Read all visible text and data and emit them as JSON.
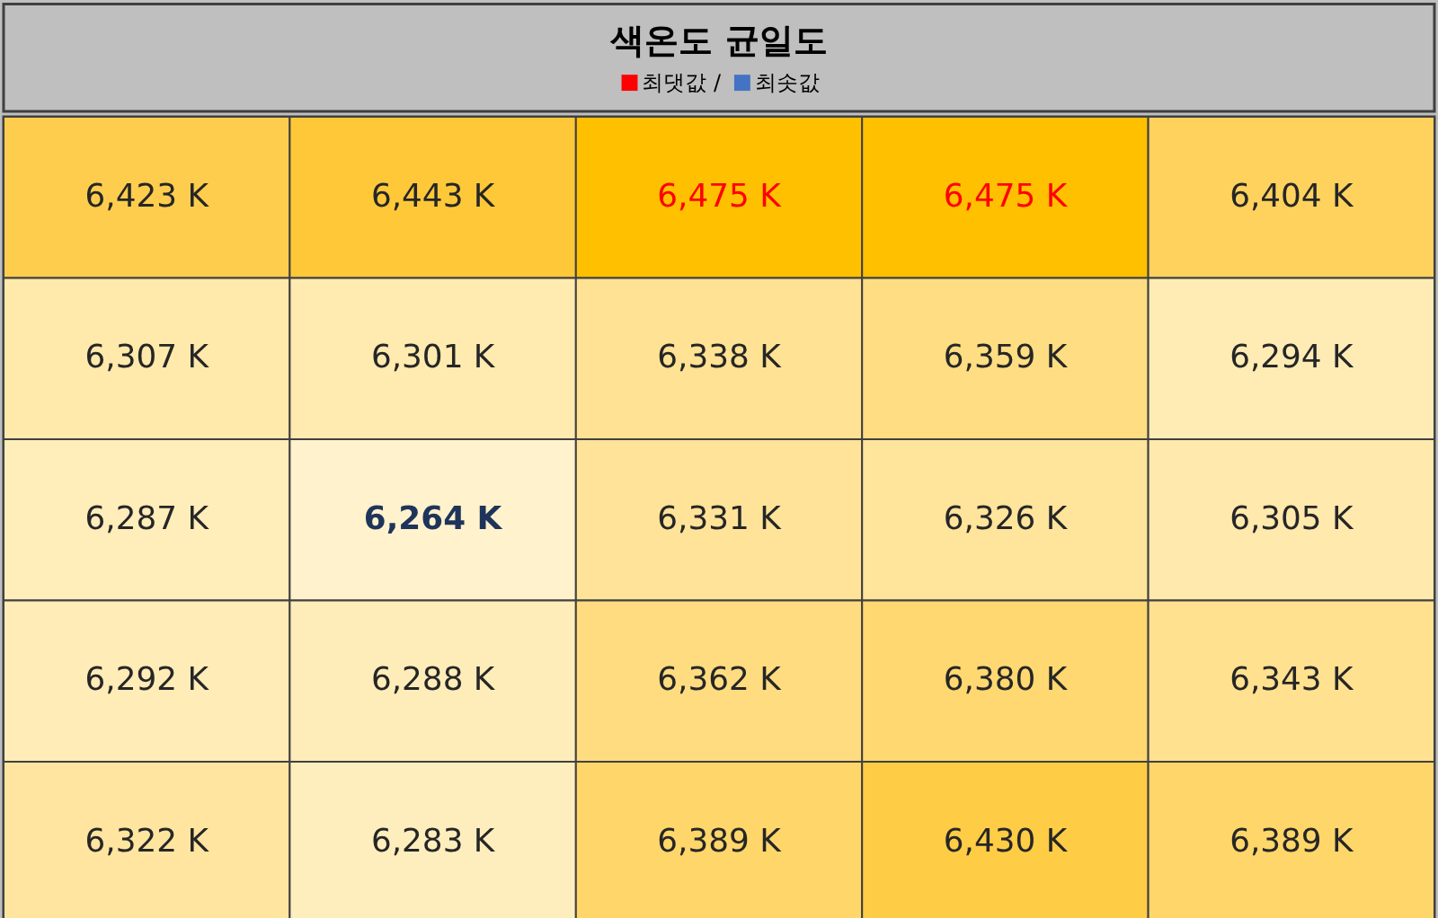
{
  "chart_data": {
    "type": "heatmap",
    "title": "색온도 균일도",
    "categories": [
      null,
      null,
      null,
      null,
      null
    ],
    "y_categories": [
      null,
      null,
      null,
      null,
      null
    ],
    "cells": [
      [
        6423,
        6443,
        6475,
        6475,
        6404
      ],
      [
        6307,
        6301,
        6338,
        6359,
        6294
      ],
      [
        6287,
        6264,
        6331,
        6326,
        6305
      ],
      [
        6292,
        6288,
        6362,
        6380,
        6343
      ],
      [
        6322,
        6283,
        6389,
        6430,
        6389
      ]
    ],
    "cell_labels": [
      [
        "6,423 K",
        "6,443 K",
        "6,475 K",
        "6,475 K",
        "6,404 K"
      ],
      [
        "6,307 K",
        "6,301 K",
        "6,338 K",
        "6,359 K",
        "6,294 K"
      ],
      [
        "6,287 K",
        "6,264 K",
        "6,331 K",
        "6,326 K",
        "6,305 K"
      ],
      [
        "6,292 K",
        "6,288 K",
        "6,362 K",
        "6,380 K",
        "6,343 K"
      ],
      [
        "6,322 K",
        "6,283 K",
        "6,389 K",
        "6,430 K",
        "6,389 K"
      ]
    ],
    "series": [
      {
        "name": "최댓값",
        "color": "#ff0000",
        "values": [
          null,
          null,
          null,
          null,
          null
        ]
      },
      {
        "name": "최솟값",
        "color": "#4472c4",
        "values": [
          null,
          null,
          null,
          null,
          null
        ]
      }
    ],
    "legend": "top",
    "annotations": [
      "/"
    ]
  }
}
